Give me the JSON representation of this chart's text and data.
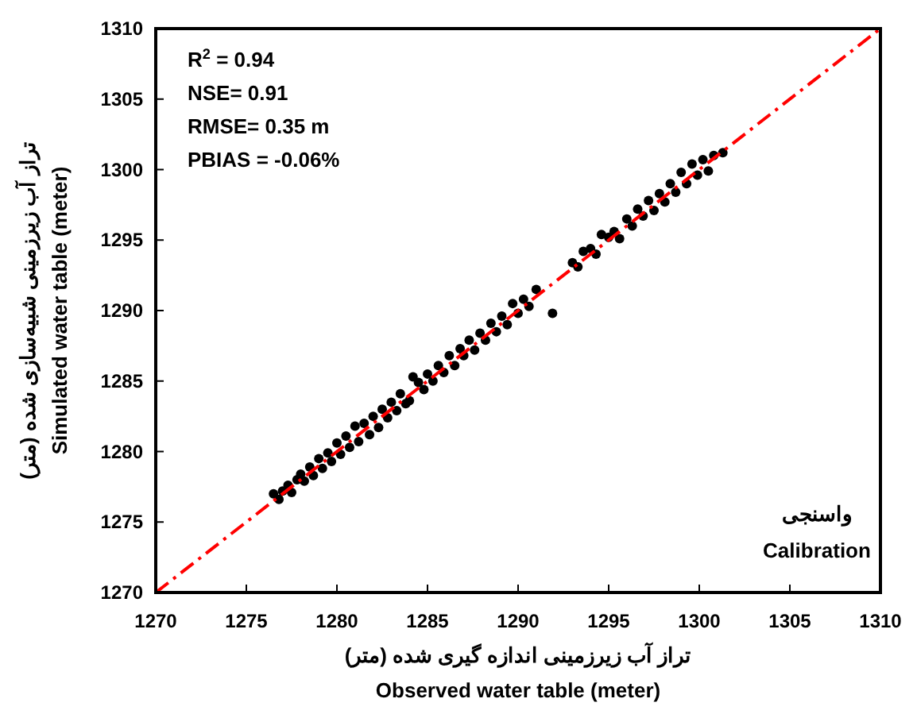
{
  "chart_data": {
    "type": "scatter",
    "xlabel": "تراز  آب زیرزمینی اندازه گیری شده (متر)\nObserved water table (meter)",
    "ylabel": "تراز آب زیرزمینی شبیه‌سازی شده (متر)\nSimulated water table (meter)",
    "annotations": [
      "R$^{2}$ = 0.94",
      "NSE= 0.91",
      "RMSE= 0.35 m",
      "PBIAS = -0.06%",
      "واسنجی",
      "Calibration"
    ],
    "xlim": [
      1270,
      1310
    ],
    "ylim": [
      1270,
      1310
    ],
    "xticks": [
      1270,
      1275,
      1280,
      1285,
      1290,
      1295,
      1300,
      1305,
      1310
    ],
    "yticks": [
      1270,
      1275,
      1280,
      1285,
      1290,
      1295,
      1300,
      1305,
      1310
    ],
    "series": [
      {
        "type": "scatter",
        "color": "#000000",
        "marker": "circle",
        "x": [
          1276.5,
          1276.8,
          1277.0,
          1277.3,
          1277.5,
          1277.8,
          1278.0,
          1278.2,
          1278.5,
          1278.7,
          1279.0,
          1279.2,
          1279.5,
          1279.7,
          1280.0,
          1280.2,
          1280.5,
          1280.7,
          1281.0,
          1281.2,
          1281.5,
          1281.8,
          1282.0,
          1282.3,
          1282.5,
          1282.8,
          1283.0,
          1283.3,
          1283.5,
          1283.8,
          1284.0,
          1284.2,
          1284.5,
          1284.8,
          1285.0,
          1285.3,
          1285.6,
          1285.9,
          1286.2,
          1286.5,
          1286.8,
          1287.0,
          1287.3,
          1287.6,
          1287.9,
          1288.2,
          1288.5,
          1288.8,
          1289.1,
          1289.4,
          1289.7,
          1290.0,
          1290.3,
          1290.6,
          1291.0,
          1291.9,
          1293.0,
          1293.3,
          1293.6,
          1294.0,
          1294.3,
          1294.6,
          1295.0,
          1295.3,
          1295.6,
          1296.0,
          1296.3,
          1296.6,
          1296.9,
          1297.2,
          1297.5,
          1297.8,
          1298.1,
          1298.4,
          1298.7,
          1299.0,
          1299.3,
          1299.6,
          1299.9,
          1300.2,
          1300.5,
          1300.8,
          1301.3
        ],
        "values": [
          1277.0,
          1276.6,
          1277.2,
          1277.6,
          1277.1,
          1278.0,
          1278.4,
          1277.9,
          1278.9,
          1278.3,
          1279.5,
          1278.8,
          1279.9,
          1279.3,
          1280.6,
          1279.8,
          1281.1,
          1280.3,
          1281.8,
          1280.7,
          1282.0,
          1281.2,
          1282.5,
          1281.7,
          1283.0,
          1282.4,
          1283.5,
          1282.9,
          1284.1,
          1283.4,
          1283.6,
          1285.3,
          1284.9,
          1284.4,
          1285.5,
          1285.0,
          1286.1,
          1285.6,
          1286.8,
          1286.1,
          1287.3,
          1286.8,
          1287.9,
          1287.2,
          1288.4,
          1287.9,
          1289.1,
          1288.5,
          1289.6,
          1289.0,
          1290.5,
          1289.8,
          1290.8,
          1290.3,
          1291.5,
          1289.8,
          1293.4,
          1293.1,
          1294.2,
          1294.4,
          1294.0,
          1295.4,
          1295.2,
          1295.6,
          1295.1,
          1296.5,
          1296.0,
          1297.2,
          1296.7,
          1297.8,
          1297.1,
          1298.3,
          1297.7,
          1299.0,
          1298.4,
          1299.8,
          1299.0,
          1300.4,
          1299.6,
          1300.7,
          1299.9,
          1301.0,
          1301.2
        ]
      },
      {
        "type": "line",
        "color": "#ff0000",
        "line_style": "dashed",
        "x": [
          1270,
          1310
        ],
        "values": [
          1270,
          1310
        ]
      }
    ]
  }
}
